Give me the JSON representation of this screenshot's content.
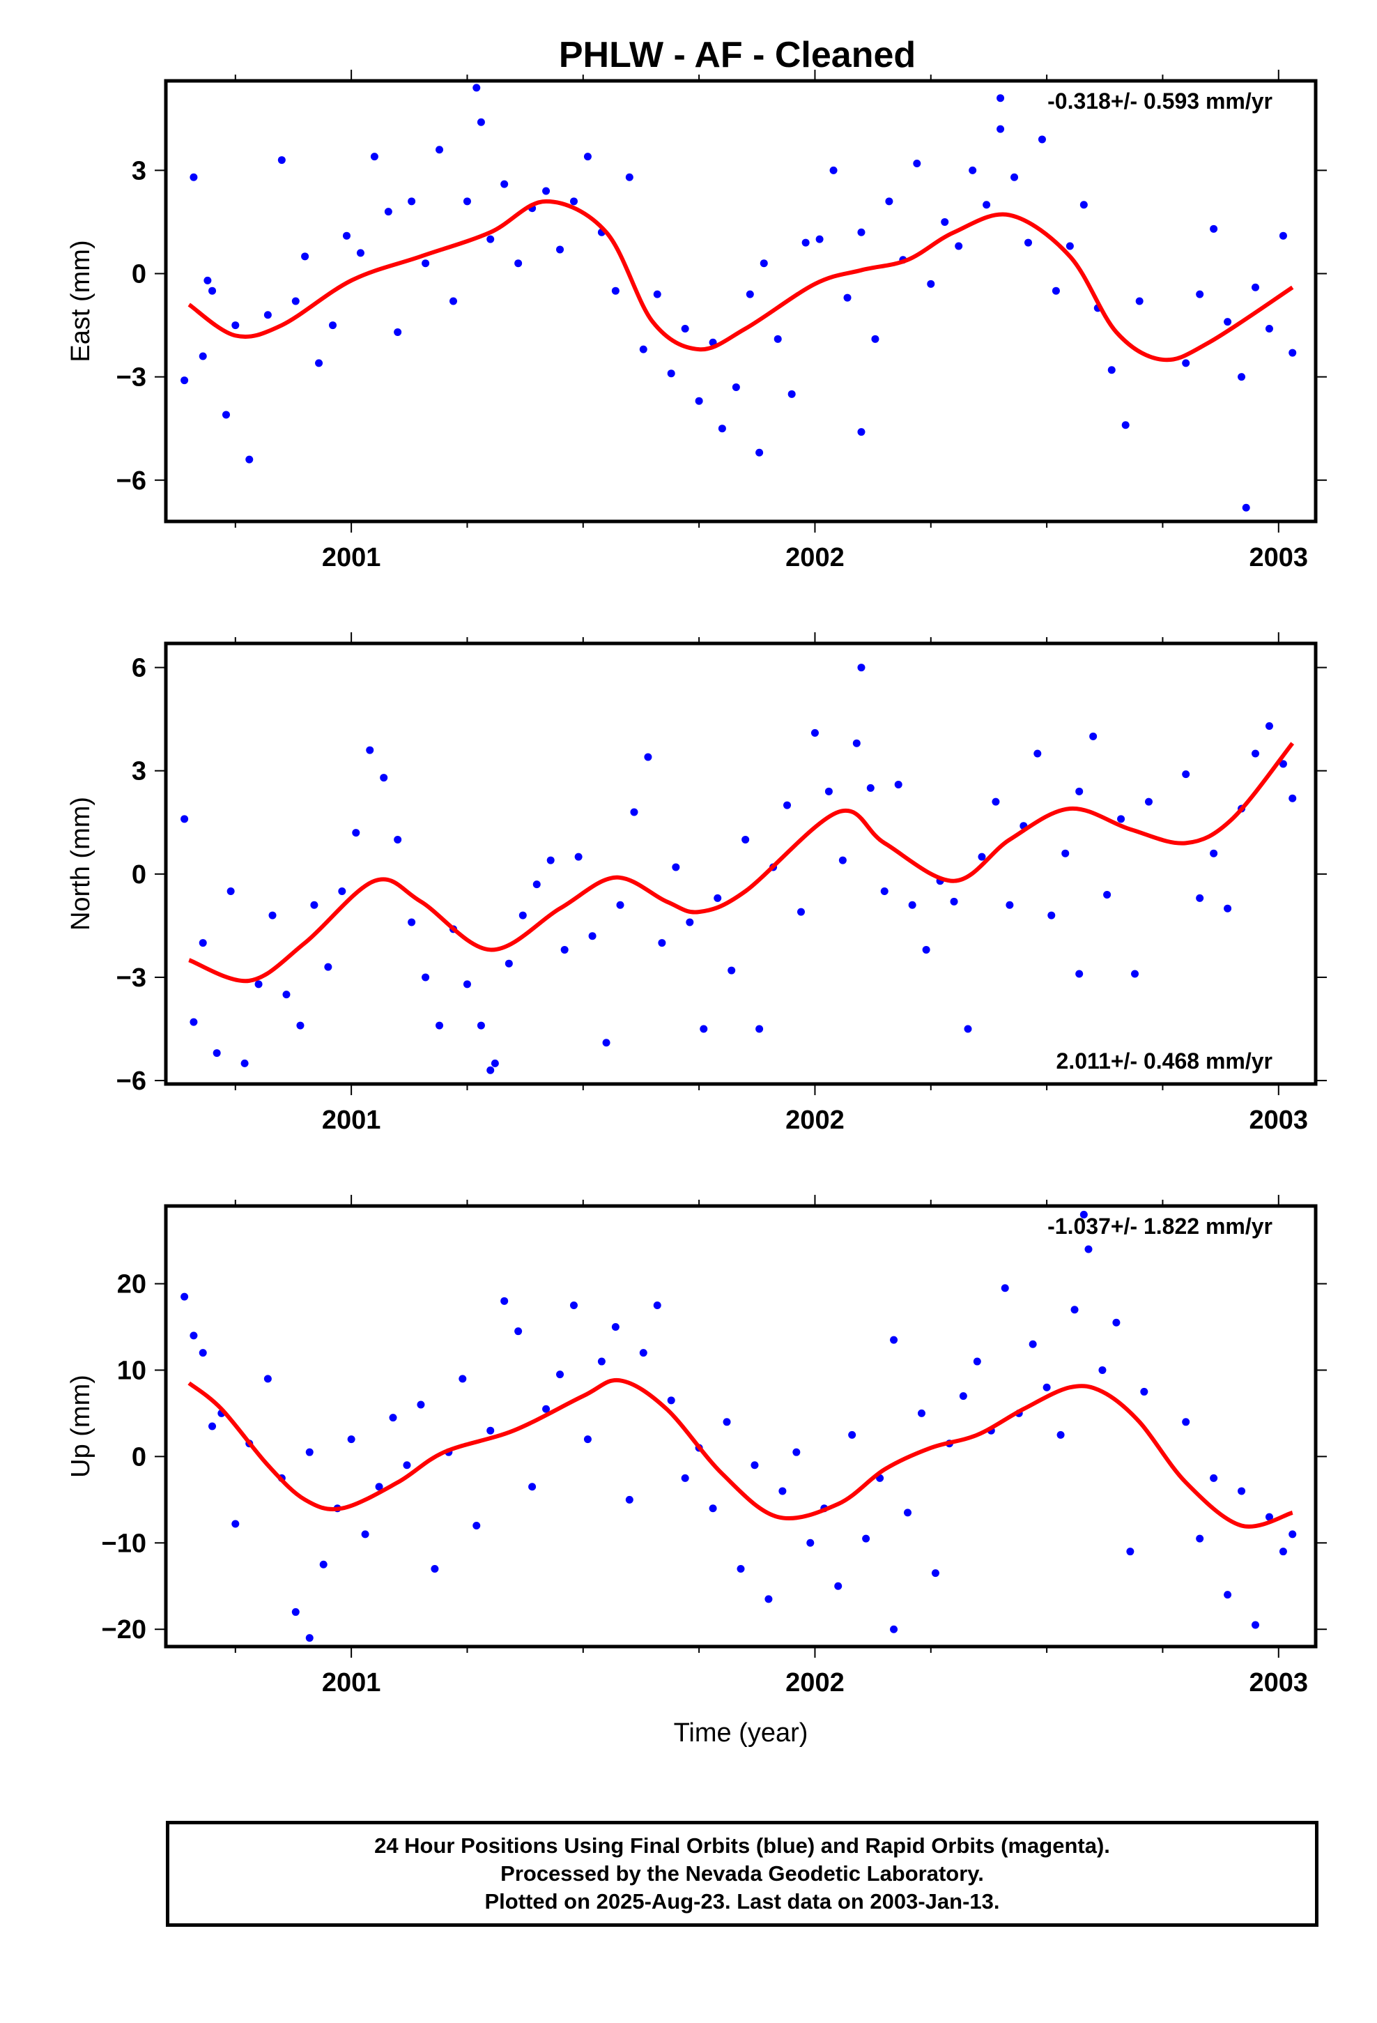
{
  "title": "PHLW  - AF - Cleaned",
  "colors": {
    "final_orbits": "#0000ff",
    "model": "#ff0000",
    "frame": "#000000"
  },
  "footer": {
    "line1": "24 Hour Positions Using Final Orbits (blue) and Rapid Orbits (magenta).",
    "line2": "Processed by the Nevada Geodetic Laboratory.",
    "line3": "Plotted on 2025-Aug-23. Last data on 2003-Jan-13."
  },
  "chart_data": [
    {
      "type": "scatter",
      "component": "east",
      "ylabel": "East (mm)",
      "rate_label": "-0.318+/- 0.593 mm/yr",
      "rate_position": "top-right",
      "xlim": [
        2000.6,
        2003.08
      ],
      "ylim": [
        -7.2,
        5.6
      ],
      "xticks": [
        2001,
        2002,
        2003
      ],
      "yticks": [
        -6,
        -3,
        0,
        3
      ],
      "model_curve": {
        "x": [
          2000.65,
          2000.75,
          2000.85,
          2001.0,
          2001.15,
          2001.3,
          2001.42,
          2001.55,
          2001.65,
          2001.75,
          2001.85,
          2002.0,
          2002.1,
          2002.2,
          2002.3,
          2002.42,
          2002.55,
          2002.65,
          2002.75,
          2002.85,
          2003.03
        ],
        "y": [
          -0.9,
          -1.8,
          -1.5,
          -0.2,
          0.5,
          1.2,
          2.1,
          1.2,
          -1.4,
          -2.2,
          -1.6,
          -0.3,
          0.1,
          0.4,
          1.2,
          1.7,
          0.5,
          -1.7,
          -2.5,
          -2.0,
          -0.4
        ]
      },
      "series": [
        {
          "name": "Final Orbits",
          "x": [
            2000.64,
            2000.66,
            2000.68,
            2000.7,
            2000.73,
            2000.75,
            2000.78,
            2000.82,
            2000.85,
            2000.88,
            2000.9,
            2000.93,
            2000.96,
            2000.99,
            2001.02,
            2001.05,
            2001.08,
            2001.1,
            2001.13,
            2001.16,
            2001.19,
            2001.22,
            2001.25,
            2001.28,
            2001.3,
            2001.33,
            2001.36,
            2001.39,
            2001.42,
            2001.45,
            2001.48,
            2001.51,
            2001.54,
            2001.57,
            2001.6,
            2001.63,
            2001.66,
            2001.69,
            2001.72,
            2001.75,
            2001.78,
            2001.8,
            2001.83,
            2001.86,
            2001.89,
            2001.92,
            2001.95,
            2001.98,
            2002.01,
            2002.04,
            2002.07,
            2002.1,
            2002.13,
            2002.16,
            2002.19,
            2002.22,
            2002.25,
            2002.28,
            2002.31,
            2002.34,
            2002.37,
            2002.4,
            2002.43,
            2002.46,
            2002.49,
            2002.52,
            2002.55,
            2002.58,
            2002.61,
            2002.64,
            2002.67,
            2002.7,
            2002.8,
            2002.83,
            2002.86,
            2002.89,
            2002.92,
            2002.95,
            2002.98,
            2003.01,
            2003.03,
            2001.27,
            2002.4,
            2002.93,
            2000.69,
            2001.88,
            2002.1
          ],
          "y": [
            -3.1,
            2.8,
            -2.4,
            -0.5,
            -4.1,
            -1.5,
            -5.4,
            -1.2,
            3.3,
            -0.8,
            0.5,
            -2.6,
            -1.5,
            1.1,
            0.6,
            3.4,
            1.8,
            -1.7,
            2.1,
            0.3,
            3.6,
            -0.8,
            2.1,
            4.4,
            1.0,
            2.6,
            0.3,
            1.9,
            2.4,
            0.7,
            2.1,
            3.4,
            1.2,
            -0.5,
            2.8,
            -2.2,
            -0.6,
            -2.9,
            -1.6,
            -3.7,
            -2.0,
            -4.5,
            -3.3,
            -0.6,
            0.3,
            -1.9,
            -3.5,
            0.9,
            1.0,
            3.0,
            -0.7,
            1.2,
            -1.9,
            2.1,
            0.4,
            3.2,
            -0.3,
            1.5,
            0.8,
            3.0,
            2.0,
            4.2,
            2.8,
            0.9,
            3.9,
            -0.5,
            0.8,
            2.0,
            -1.0,
            -2.8,
            -4.4,
            -0.8,
            -2.6,
            -0.6,
            1.3,
            -1.4,
            -3.0,
            -0.4,
            -1.6,
            1.1,
            -2.3,
            5.4,
            5.1,
            -6.8,
            -0.2,
            -5.2,
            -4.6
          ]
        }
      ]
    },
    {
      "type": "scatter",
      "component": "north",
      "ylabel": "North (mm)",
      "rate_label": "2.011+/- 0.468 mm/yr",
      "rate_position": "bottom-right",
      "xlim": [
        2000.6,
        2003.08
      ],
      "ylim": [
        -6.1,
        6.7
      ],
      "xticks": [
        2001,
        2002,
        2003
      ],
      "yticks": [
        -6,
        -3,
        0,
        3,
        6
      ],
      "model_curve": {
        "x": [
          2000.65,
          2000.78,
          2000.9,
          2001.05,
          2001.15,
          2001.3,
          2001.45,
          2001.57,
          2001.68,
          2001.75,
          2001.85,
          2002.05,
          2002.15,
          2002.3,
          2002.42,
          2002.55,
          2002.68,
          2002.8,
          2002.9,
          2003.03
        ],
        "y": [
          -2.5,
          -3.1,
          -2.0,
          -0.2,
          -0.8,
          -2.2,
          -1.0,
          -0.1,
          -0.8,
          -1.1,
          -0.5,
          1.8,
          0.9,
          -0.2,
          1.0,
          1.9,
          1.3,
          0.9,
          1.6,
          3.8
        ]
      },
      "series": [
        {
          "name": "Final Orbits",
          "x": [
            2000.64,
            2000.66,
            2000.68,
            2000.71,
            2000.74,
            2000.77,
            2000.8,
            2000.83,
            2000.86,
            2000.89,
            2000.92,
            2000.95,
            2000.98,
            2001.01,
            2001.04,
            2001.07,
            2001.1,
            2001.13,
            2001.16,
            2001.19,
            2001.22,
            2001.25,
            2001.28,
            2001.31,
            2001.34,
            2001.37,
            2001.4,
            2001.43,
            2001.46,
            2001.49,
            2001.52,
            2001.55,
            2001.58,
            2001.61,
            2001.64,
            2001.67,
            2001.7,
            2001.73,
            2001.76,
            2001.79,
            2001.82,
            2001.85,
            2001.88,
            2001.91,
            2001.94,
            2001.97,
            2002.0,
            2002.03,
            2002.06,
            2002.09,
            2002.12,
            2002.15,
            2002.18,
            2002.21,
            2002.24,
            2002.27,
            2002.3,
            2002.33,
            2002.36,
            2002.39,
            2002.42,
            2002.45,
            2002.48,
            2002.51,
            2002.54,
            2002.57,
            2002.6,
            2002.63,
            2002.66,
            2002.69,
            2002.72,
            2002.8,
            2002.83,
            2002.86,
            2002.89,
            2002.92,
            2002.95,
            2002.98,
            2003.01,
            2003.03,
            2002.1,
            2002.57,
            2001.3
          ],
          "y": [
            1.6,
            -4.3,
            -2.0,
            -5.2,
            -0.5,
            -5.5,
            -3.2,
            -1.2,
            -3.5,
            -4.4,
            -0.9,
            -2.7,
            -0.5,
            1.2,
            3.6,
            2.8,
            1.0,
            -1.4,
            -3.0,
            -4.4,
            -1.6,
            -3.2,
            -4.4,
            -5.5,
            -2.6,
            -1.2,
            -0.3,
            0.4,
            -2.2,
            0.5,
            -1.8,
            -4.9,
            -0.9,
            1.8,
            3.4,
            -2.0,
            0.2,
            -1.4,
            -4.5,
            -0.7,
            -2.8,
            1.0,
            -4.5,
            0.2,
            2.0,
            -1.1,
            4.1,
            2.4,
            0.4,
            3.8,
            2.5,
            -0.5,
            2.6,
            -0.9,
            -2.2,
            -0.2,
            -0.8,
            -4.5,
            0.5,
            2.1,
            -0.9,
            1.4,
            3.5,
            -1.2,
            0.6,
            2.4,
            4.0,
            -0.6,
            1.6,
            -2.9,
            2.1,
            2.9,
            -0.7,
            0.6,
            -1.0,
            1.9,
            3.5,
            4.3,
            3.2,
            2.2,
            6.0,
            -2.9,
            -5.7
          ]
        }
      ]
    },
    {
      "type": "scatter",
      "component": "up",
      "ylabel": "Up (mm)",
      "rate_label": "-1.037+/- 1.822 mm/yr",
      "rate_position": "top-right",
      "xlim": [
        2000.6,
        2003.08
      ],
      "ylim": [
        -22,
        29
      ],
      "xticks": [
        2001,
        2002,
        2003
      ],
      "yticks": [
        -20,
        -10,
        0,
        10,
        20
      ],
      "xlabel": "Time (year)",
      "model_curve": {
        "x": [
          2000.65,
          2000.72,
          2000.82,
          2000.9,
          2000.98,
          2001.1,
          2001.2,
          2001.35,
          2001.5,
          2001.58,
          2001.68,
          2001.8,
          2001.92,
          2002.05,
          2002.15,
          2002.25,
          2002.35,
          2002.45,
          2002.55,
          2002.62,
          2002.7,
          2002.8,
          2002.92,
          2003.03
        ],
        "y": [
          8.5,
          5.5,
          -1.0,
          -5.0,
          -6.0,
          -3.0,
          0.5,
          3.0,
          7.0,
          8.8,
          5.5,
          -2.0,
          -7.0,
          -5.5,
          -1.5,
          1.0,
          2.5,
          5.5,
          8.0,
          7.5,
          4.0,
          -3.0,
          -8.0,
          -6.5
        ]
      },
      "series": [
        {
          "name": "Final Orbits",
          "x": [
            2000.64,
            2000.66,
            2000.68,
            2000.7,
            2000.72,
            2000.75,
            2000.78,
            2000.82,
            2000.85,
            2000.88,
            2000.91,
            2000.94,
            2000.97,
            2001.0,
            2001.03,
            2001.06,
            2001.09,
            2001.12,
            2001.15,
            2001.18,
            2001.21,
            2001.24,
            2001.27,
            2001.3,
            2001.33,
            2001.36,
            2001.39,
            2001.42,
            2001.45,
            2001.48,
            2001.51,
            2001.54,
            2001.57,
            2001.6,
            2001.63,
            2001.66,
            2001.69,
            2001.72,
            2001.75,
            2001.78,
            2001.81,
            2001.84,
            2001.87,
            2001.9,
            2001.93,
            2001.96,
            2001.99,
            2002.02,
            2002.05,
            2002.08,
            2002.11,
            2002.14,
            2002.17,
            2002.2,
            2002.23,
            2002.26,
            2002.29,
            2002.32,
            2002.35,
            2002.38,
            2002.41,
            2002.44,
            2002.47,
            2002.5,
            2002.53,
            2002.56,
            2002.59,
            2002.62,
            2002.65,
            2002.68,
            2002.71,
            2002.8,
            2002.83,
            2002.86,
            2002.89,
            2002.92,
            2002.95,
            2002.98,
            2003.01,
            2003.03,
            2002.58,
            2002.17,
            2000.91
          ],
          "y": [
            18.5,
            14.0,
            12.0,
            3.5,
            5.0,
            -7.8,
            1.5,
            9.0,
            -2.5,
            -18.0,
            0.5,
            -12.5,
            -6.0,
            2.0,
            -9.0,
            -3.5,
            4.5,
            -1.0,
            6.0,
            -13.0,
            0.5,
            9.0,
            -8.0,
            3.0,
            18.0,
            14.5,
            -3.5,
            5.5,
            9.5,
            17.5,
            2.0,
            11.0,
            15.0,
            -5.0,
            12.0,
            17.5,
            6.5,
            -2.5,
            1.0,
            -6.0,
            4.0,
            -13.0,
            -1.0,
            -16.5,
            -4.0,
            0.5,
            -10.0,
            -6.0,
            -15.0,
            2.5,
            -9.5,
            -2.5,
            13.5,
            -6.5,
            5.0,
            -13.5,
            1.5,
            7.0,
            11.0,
            3.0,
            19.5,
            5.0,
            13.0,
            8.0,
            2.5,
            17.0,
            24.0,
            10.0,
            15.5,
            -11.0,
            7.5,
            4.0,
            -9.5,
            -2.5,
            -16.0,
            -4.0,
            -19.5,
            -7.0,
            -11.0,
            -9.0,
            28.0,
            -20.0,
            -21.0
          ]
        }
      ]
    }
  ]
}
